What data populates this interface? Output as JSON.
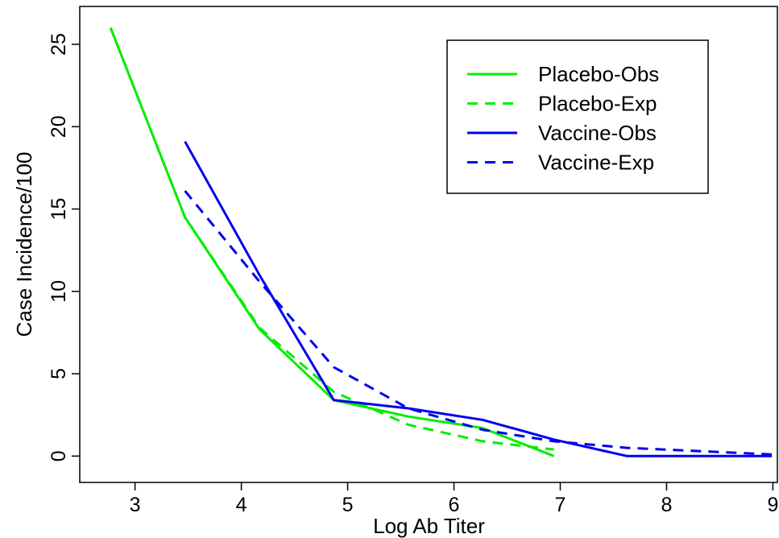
{
  "chart_data": {
    "type": "line",
    "title": "",
    "xlabel": "Log Ab Titer",
    "ylabel": "Case Incidence/100",
    "xlim": [
      2.48,
      9.05
    ],
    "ylim": [
      -1.6,
      27.3
    ],
    "xticks": [
      3,
      4,
      5,
      6,
      7,
      8,
      9
    ],
    "yticks": [
      0,
      5,
      10,
      15,
      20,
      25
    ],
    "grid": false,
    "legend_position": "top-right",
    "series": [
      {
        "name": "Placebo-Obs",
        "color": "#00ee00",
        "dash": "solid",
        "x": [
          2.77,
          3.47,
          4.17,
          4.87,
          5.57,
          6.27,
          6.94
        ],
        "y": [
          26.0,
          14.5,
          7.7,
          3.4,
          2.4,
          1.7,
          0.0
        ]
      },
      {
        "name": "Placebo-Exp",
        "color": "#00ee00",
        "dash": "dashed",
        "x": [
          2.77,
          3.47,
          4.17,
          4.87,
          5.57,
          6.27,
          6.94
        ],
        "y": [
          26.0,
          14.5,
          7.8,
          3.9,
          1.9,
          0.9,
          0.4
        ]
      },
      {
        "name": "Vaccine-Obs",
        "color": "#0000ee",
        "dash": "solid",
        "x": [
          3.47,
          4.17,
          4.87,
          5.57,
          6.27,
          6.94,
          7.63,
          8.99
        ],
        "y": [
          19.1,
          11.0,
          3.4,
          2.9,
          2.2,
          1.0,
          0.0,
          0.0
        ]
      },
      {
        "name": "Vaccine-Exp",
        "color": "#0000ee",
        "dash": "dashed",
        "x": [
          3.47,
          4.17,
          4.87,
          5.57,
          6.27,
          6.94,
          7.63,
          8.99
        ],
        "y": [
          16.1,
          10.6,
          5.4,
          2.9,
          1.6,
          0.9,
          0.5,
          0.1
        ]
      }
    ]
  }
}
